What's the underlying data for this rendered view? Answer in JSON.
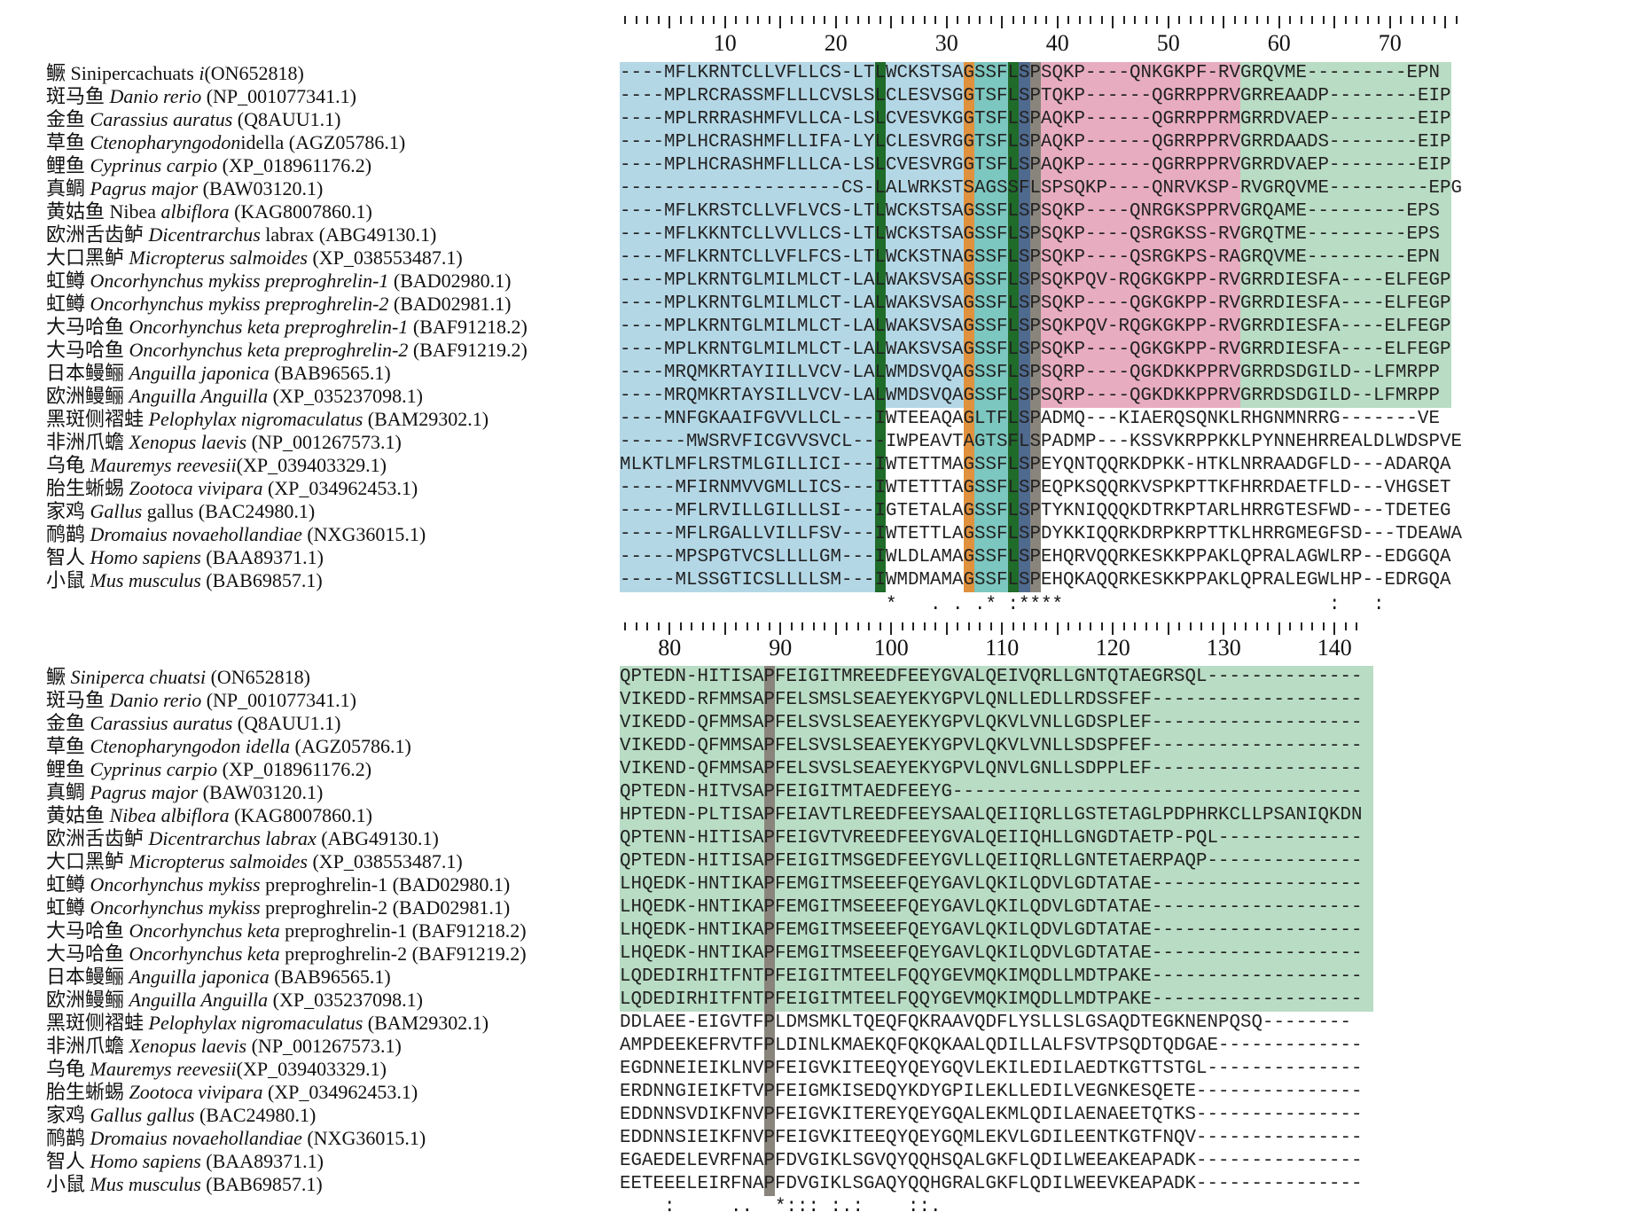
{
  "colors": {
    "blue": "#b4d7e6",
    "pink": "#e8acc0",
    "green": "#b9dcc4",
    "darkgreen": "#1f6b2a",
    "orange": "#e0913d",
    "teal": "#7cc7bf",
    "darkteal": "#277a6e",
    "slate": "#4f6a8f",
    "gray": "#8a857c"
  },
  "blocks": [
    {
      "ruler_numbers": [
        "10",
        "20",
        "30",
        "40",
        "50",
        "60",
        "70"
      ],
      "species": [
        {
          "cn": "鳜",
          "pre": " Sinipercachuats ",
          "it": "i",
          "post": "(ON652818)"
        },
        {
          "cn": "斑马鱼",
          "pre": " ",
          "it": "Danio rerio",
          "post": " (NP_001077341.1)"
        },
        {
          "cn": "金鱼",
          "pre": " ",
          "it": "Carassius auratus",
          "post": " (Q8AUU1.1)"
        },
        {
          "cn": "草鱼",
          "pre": " ",
          "it": "Ctenopharyngodon",
          "post": "idella (AGZ05786.1)"
        },
        {
          "cn": "鲤鱼",
          "pre": " ",
          "it": "Cyprinus carpio",
          "post": " (XP_018961176.2)"
        },
        {
          "cn": "真鲷",
          "pre": " ",
          "it": "Pagrus major",
          "post": " (BAW03120.1)"
        },
        {
          "cn": "黄姑鱼",
          "pre": " Nibea ",
          "it": "albiflora",
          "post": " (KAG8007860.1)"
        },
        {
          "cn": "欧洲舌齿鲈",
          "pre": " ",
          "it": "Dicentrarchus",
          "post": " labrax (ABG49130.1)"
        },
        {
          "cn": "大口黑鲈",
          "pre": " ",
          "it": "Micropterus salmoides",
          "post": " (XP_038553487.1)"
        },
        {
          "cn": "虹鳟",
          "pre": " ",
          "it": "Oncorhynchus mykiss preproghrelin-1",
          "post": " (BAD02980.1)"
        },
        {
          "cn": "虹鳟",
          "pre": " ",
          "it": "Oncorhynchus mykiss preproghrelin-2",
          "post": " (BAD02981.1)"
        },
        {
          "cn": "大马哈鱼",
          "pre": " ",
          "it": "Oncorhynchus keta preproghrelin-1",
          "post": " (BAF91218.2)"
        },
        {
          "cn": "大马哈鱼",
          "pre": " ",
          "it": "Oncorhynchus keta preproghrelin-2",
          "post": " (BAF91219.2)"
        },
        {
          "cn": "日本鳗鲡",
          "pre": " ",
          "it": "Anguilla  japonica",
          "post": " (BAB96565.1)"
        },
        {
          "cn": "欧洲鳗鲡",
          "pre": " ",
          "it": "Anguilla Anguilla",
          "post": " (XP_035237098.1)"
        },
        {
          "cn": "黑斑侧褶蛙",
          "pre": " ",
          "it": "Pelophylax nigromaculatus",
          "post": " (BAM29302.1)"
        },
        {
          "cn": "非洲爪蟾",
          "pre": " ",
          "it": "Xenopus laevis",
          "post": " (NP_001267573.1)"
        },
        {
          "cn": "乌龟",
          "pre": " ",
          "it": "Mauremys reevesii",
          "post": "(XP_039403329.1)"
        },
        {
          "cn": "胎生蜥蜴",
          "pre": " ",
          "it": "Zootoca vivipara",
          "post": " (XP_034962453.1)"
        },
        {
          "cn": "家鸡",
          "pre": " ",
          "it": "Gallus",
          "post": " gallus (BAC24980.1)"
        },
        {
          "cn": "鸸鹋",
          "pre": " ",
          "it": "Dromaius novaehollandiae",
          "post": " (NXG36015.1)"
        },
        {
          "cn": "智人",
          "pre": " ",
          "it": "Homo sapiens",
          "post": " (BAA89371.1)"
        },
        {
          "cn": "小鼠",
          "pre": " ",
          "it": "Mus musculus",
          "post": " (BAB69857.1)"
        }
      ],
      "sequences": [
        "----MFLKRNTCLLVFLLCS-LTLWCKSTSAGSSFLSPSQKP----QNKGKPF-RVGRQVME---------EPN",
        "----MPLRCRASSMFLLLCVSLSLCLESVSGGTSFLSPTQKP------QGRRPPRVGRREAADP--------EIP",
        "----MPLRRRASHMFVLLCA-LSLCVESVKGGTSFLSPAQKP------QGRRPPRMGRRDVAEP--------EIP",
        "----MPLHCRASHMFLLIFA-LYLCLESVRGGTSFLSPAQKP------QGRRPPRVGRRDAADS--------EIP",
        "----MPLHCRASHMFLLLCA-LSLCVESVRGGTSFLSPAQKP------QGRRPPRVGRRDVAEP--------EIP",
        "--------------------CS-LALWRKSTSAGSSFLSPSQKP----QNRVKSP-RVGRQVME---------EPG",
        "----MFLKRSTCLLVFLVCS-LTLWCKSTSAGSSFLSPSQKP----QNRGKSPPRVGRQAME---------EPS",
        "----MFLKKNTCLLVVLLCS-LTLWCKSTSAGSSFLSPSQKP----QSRGKSS-RVGRQTME---------EPS",
        "----MFLKRNTCLLVFLFCS-LTLWCKSTNAGSSFLSPSQKP----QSRGKPS-RAGRQVME---------EPN",
        "----MPLKRNTGLMILMLCT-LALWAKSVSAGSSFLSPSQKPQV-RQGKGKPP-RVGRRDIESFA----ELFEGP",
        "----MPLKRNTGLMILMLCT-LALWAKSVSAGSSFLSPSQKP----QGKGKPP-RVGRRDIESFA----ELFEGP",
        "----MPLKRNTGLMILMLCT-LALWAKSVSAGSSFLSPSQKPQV-RQGKGKPP-RVGRRDIESFA----ELFEGP",
        "----MPLKRNTGLMILMLCT-LALWAKSVSAGSSFLSPSQKP----QGKGKPP-RVGRRDIESFA----ELFEGP",
        "----MRQMKRTAYIILLVCV-LALWMDSVQAGSSFLSPSQRP----QGKDKKPPRVGRRDSDGILD--LFMRPP",
        "----MRQMKRTAYSILLVCV-LALWMDSVQAGSSFLSPSQRP----QGKDKKPPRVGRRDSDGILD--LFMRPP",
        "----MNFGKAAIFGVVLLCL---IWTEEAQAGLTFLSPADMQ---KIAERQSQNKLRHGNMNRRG-------VE",
        "------MWSRVFICGVVSVCL---IWPEAVTAGTSFLSPADMP---KSSVKRPPKKLPYNNEHRREALDLWDSPVE",
        "MLKTLMFLRSTMLGILLICI---IWTETTMAGSSFLSPEYQNTQQRKDPKK-HTKLNRRAADGFLD---ADARQA",
        "-----MFIRNMVVGMLLICS---IWTETTTAGSSFLSPEQPKSQQRKVSPKPTTKFHRRDAETFLD---VHGSET",
        "-----MFLRVILLGILLLSI---IGTETALAGSSFLSPTYKNIQQQKDTRKPTARLHRRGTESFWD---TDETEG",
        "-----MFLRGALLVILLFSV---IWTETTLAGSSFLSPDYKKIQQRKDRPKRPTTKLHRRGMEGFSD---TDEAWA",
        "-----MPSPGTVCSLLLLGM---IWLDLAMAGSSFLSPEHQRVQQRKESKKPPAKLQPRALAGWLRP--EDGGQA",
        "-----MLSSGTICSLLLLSM---IWMDMAMAGSSFLSPEHQKAQQRKESKKPPAKLQPRALEGWLHP--EDRGQA"
      ],
      "consensus": "                        *   . . .* :****                        :   :"
    },
    {
      "ruler_numbers": [
        "80",
        "90",
        "100",
        "110",
        "120",
        "130",
        "140"
      ],
      "species": [
        {
          "cn": "鳜",
          "pre": " ",
          "it": "Siniperca chuatsi",
          "post": " (ON652818)"
        },
        {
          "cn": "斑马鱼",
          "pre": " ",
          "it": "Danio rerio",
          "post": " (NP_001077341.1)"
        },
        {
          "cn": "金鱼",
          "pre": " ",
          "it": "Carassius auratus",
          "post": " (Q8AUU1.1)"
        },
        {
          "cn": "草鱼",
          "pre": " ",
          "it": "Ctenopharyngodon idella",
          "post": " (AGZ05786.1)"
        },
        {
          "cn": "鲤鱼",
          "pre": " ",
          "it": "Cyprinus carpio",
          "post": " (XP_018961176.2)"
        },
        {
          "cn": "真鲷",
          "pre": " ",
          "it": "Pagrus major",
          "post": " (BAW03120.1)"
        },
        {
          "cn": "黄姑鱼",
          "pre": " ",
          "it": "Nibea albiflora",
          "post": " (KAG8007860.1)"
        },
        {
          "cn": "欧洲舌齿鲈",
          "pre": " ",
          "it": "Dicentrarchus labrax",
          "post": " (ABG49130.1)"
        },
        {
          "cn": "大口黑鲈",
          "pre": " ",
          "it": "Micropterus salmoides",
          "post": " (XP_038553487.1)"
        },
        {
          "cn": "虹鳟",
          "pre": " ",
          "it": "Oncorhynchus mykiss",
          "post": " preproghrelin-1 (BAD02980.1)"
        },
        {
          "cn": "虹鳟",
          "pre": " ",
          "it": "Oncorhynchus mykiss",
          "post": " preproghrelin-2 (BAD02981.1)"
        },
        {
          "cn": "大马哈鱼",
          "pre": " ",
          "it": "Oncorhynchus keta",
          "post": " preproghrelin-1 (BAF91218.2)"
        },
        {
          "cn": "大马哈鱼",
          "pre": " ",
          "it": "Oncorhynchus keta",
          "post": " preproghrelin-2 (BAF91219.2)"
        },
        {
          "cn": "日本鳗鲡",
          "pre": " ",
          "it": "Anguilla japonica",
          "post": " (BAB96565.1)"
        },
        {
          "cn": "欧洲鳗鲡",
          "pre": " ",
          "it": "Anguilla Anguilla",
          "post": " (XP_035237098.1)"
        },
        {
          "cn": "黑斑侧褶蛙",
          "pre": " ",
          "it": "Pelophylax nigromaculatus",
          "post": " (BAM29302.1)"
        },
        {
          "cn": "非洲爪蟾",
          "pre": " ",
          "it": "Xenopus laevis",
          "post": " (NP_001267573.1)"
        },
        {
          "cn": "乌龟",
          "pre": " ",
          "it": "Mauremys reevesii",
          "post": "(XP_039403329.1)"
        },
        {
          "cn": "胎生蜥蜴",
          "pre": " ",
          "it": "Zootoca vivipara",
          "post": " (XP_034962453.1)"
        },
        {
          "cn": "家鸡",
          "pre": " ",
          "it": "Gallus gallus",
          "post": " (BAC24980.1)"
        },
        {
          "cn": "鸸鹋",
          "pre": " ",
          "it": "Dromaius novaehollandiae",
          "post": " (NXG36015.1)"
        },
        {
          "cn": "智人",
          "pre": " ",
          "it": "Homo sapiens",
          "post": " (BAA89371.1)"
        },
        {
          "cn": "小鼠",
          "pre": " ",
          "it": "Mus musculus",
          "post": " (BAB69857.1)"
        }
      ],
      "sequences": [
        "QPTEDN-HITISAPFEIGITMREEDFEEYGVALQEIVQRLLGNTQTAEGRSQL--------------",
        "VIKEDD-RFMMSAPFELSMSLSEAEYEKYGPVLQNLLEDLLRDSSFEF-------------------",
        "VIKEDD-QFMMSAPFELSVSLSEAEYEKYGPVLQKVLVNLLGDSPLEF-------------------",
        "VIKEDD-QFMMSAPFELSVSLSEAEYEKYGPVLQKVLVNLLSDSPFEF-------------------",
        "VIKEND-QFMMSAPFELSVSLSEAEYEKYGPVLQNVLGNLLSDPPLEF-------------------",
        "QPTEDN-HITVSAPFEIGITMTAEDFEEYG-------------------------------------",
        "HPTEDN-PLTISAPFEIAVTLREEDFEEYSAALQEIIQRLLGSTETAGLPDPHRKCLLPSANIQKDN",
        "QPTENN-HITISAPFEIGVTVREEDFEEYGVALQEIIQHLLGNGDTAETP-PQL-------------",
        "QPTEDN-HITISAPFEIGITMSGEDFEEYGVLLQEIIQRLLGNTETAERPAQP--------------",
        "LHQEDK-HNTIKAPFEMGITMSEEEFQEYGAVLQKILQDVLGDTATAE-------------------",
        "LHQEDK-HNTIKAPFEMGITMSEEEFQEYGAVLQKILQDVLGDTATAE-------------------",
        "LHQEDK-HNTIKAPFEMGITMSEEEFQEYGAVLQKILQDVLGDTATAE-------------------",
        "LHQEDK-HNTIKAPFEMGITMSEEEFQEYGAVLQKILQDVLGDTATAE-------------------",
        "LQDEDIRHITFNTPFEIGITMTEELFQQYGEVMQKIMQDLLMDTPAKE-------------------",
        "LQDEDIRHITFNTPFEIGITMTEELFQQYGEVMQKIMQDLLMDTPAKE-------------------",
        "DDLAEE-EIGVTFPLDMSMKLTQEQFQKRAAVQDFLYSLLSLGSAQDTEGKNENPQSQ--------",
        "AMPDEEKEFRVTFPLDINLKMAEKQFQKQKAALQDILLALFSVTPSQDTQDGAE-------------",
        "EGDNNEIEIKLNVPFEIGVKITEEQYQEYGQVLEKILEDILAEDTKGTTSTGL--------------",
        "ERDNNGIEIKFTVPFEIGMKISEDQYKDYGPILEKLLEDILVEGNKESQETE---------------",
        "EDDNNSVDIKFNVPFEIGVKITEREYQEYGQALEKMLQDILAENAEETQTKS---------------",
        "EDDNNSIEIKFNVPFEIGVKITEEQYQEYGQMLEKVLGDILEENTKGTFNQV---------------",
        "EGAEDELEVRFNAPFDVGIKLSGVQYQQHSQALGKFLQDILWEEAKEAPADK---------------",
        "EETEEELEIRFNAPFDVGIKLSGAQYQQHGRALGKFLQDILWEEVKEAPADK---------------"
      ],
      "consensus": "    :     ..  *::: :.:    ::."
    }
  ]
}
